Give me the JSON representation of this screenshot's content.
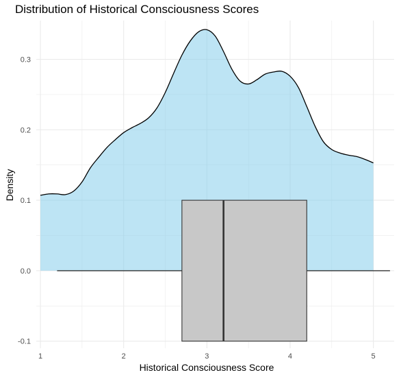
{
  "chart_data": {
    "type": "area",
    "title": "Distribution of Historical Consciousness Scores",
    "xlabel": "Historical Consciousness Score",
    "ylabel": "Density",
    "xlim": [
      0.95,
      5.25
    ],
    "ylim": [
      -0.11,
      0.355
    ],
    "x_ticks": [
      "1",
      "2",
      "3",
      "4",
      "5"
    ],
    "x_tick_values": [
      1,
      2,
      3,
      4,
      5
    ],
    "y_ticks": [
      "-0.1",
      "0.0",
      "0.1",
      "0.2",
      "0.3"
    ],
    "y_tick_values": [
      -0.1,
      0,
      0.1,
      0.2,
      0.3
    ],
    "grid": true,
    "colors": {
      "density_fill": "#87ceeb",
      "density_line": "#000000",
      "box_fill": "#c8c8c8",
      "box_line": "#333333",
      "grid": "#ebebeb"
    },
    "density": {
      "x": [
        1.0,
        1.1,
        1.2,
        1.3,
        1.4,
        1.5,
        1.6,
        1.7,
        1.8,
        1.9,
        2.0,
        2.1,
        2.2,
        2.3,
        2.4,
        2.5,
        2.6,
        2.7,
        2.8,
        2.9,
        3.0,
        3.1,
        3.2,
        3.3,
        3.4,
        3.5,
        3.6,
        3.7,
        3.8,
        3.9,
        4.0,
        4.1,
        4.2,
        4.3,
        4.4,
        4.5,
        4.6,
        4.7,
        4.8,
        4.9,
        5.0
      ],
      "y": [
        0.107,
        0.109,
        0.109,
        0.108,
        0.113,
        0.126,
        0.146,
        0.161,
        0.175,
        0.186,
        0.196,
        0.203,
        0.209,
        0.217,
        0.231,
        0.253,
        0.28,
        0.306,
        0.326,
        0.339,
        0.342,
        0.333,
        0.311,
        0.286,
        0.269,
        0.265,
        0.271,
        0.279,
        0.282,
        0.283,
        0.276,
        0.26,
        0.233,
        0.205,
        0.183,
        0.172,
        0.167,
        0.164,
        0.162,
        0.158,
        0.153
      ]
    },
    "boxplot": {
      "q1": 2.7,
      "median": 3.2,
      "q3": 4.2,
      "whisker_low": 1.2,
      "whisker_high": 5.2,
      "ymin": -0.1,
      "ymax": 0.1,
      "whisker_y": 0
    }
  }
}
